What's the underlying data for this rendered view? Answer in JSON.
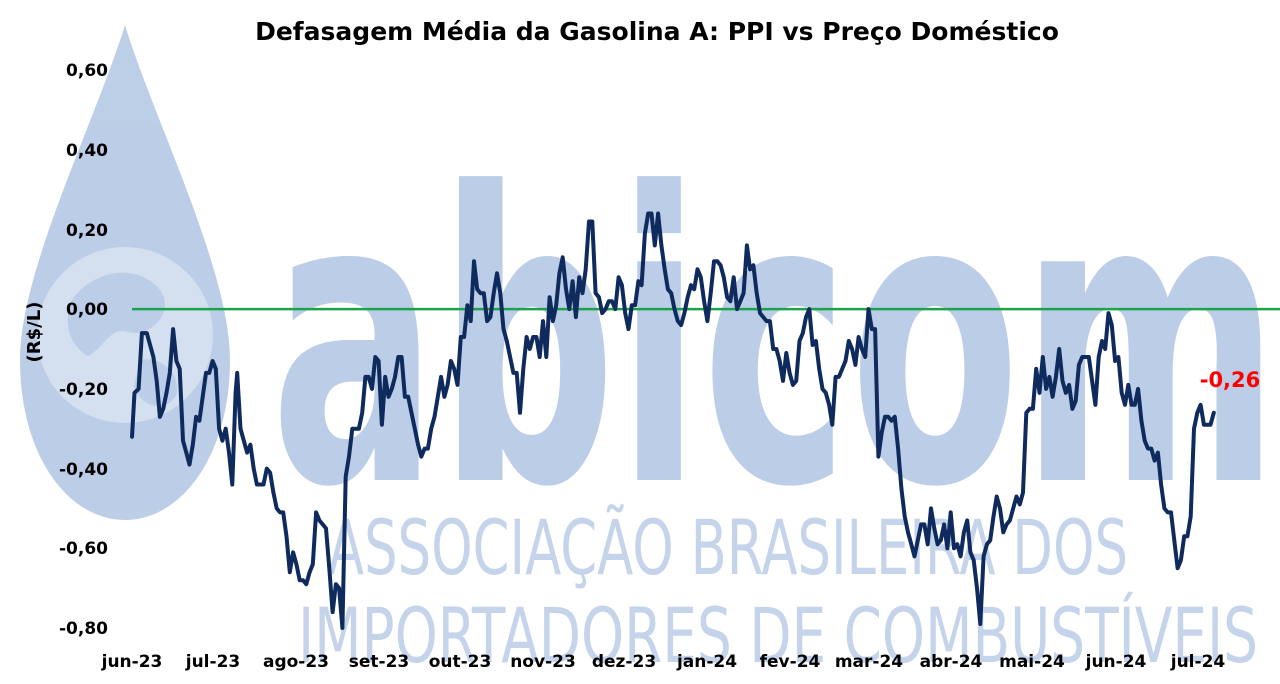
{
  "chart_data": {
    "type": "line",
    "title": "Defasagem Média da Gasolina A: PPI vs Preço Doméstico",
    "ylabel": "(R$/L)",
    "xlabel": "",
    "ylim": [
      -0.8,
      0.6
    ],
    "y_ticks": [
      "0,60",
      "0,40",
      "0,20",
      "0,00",
      "-0,20",
      "-0,40",
      "-0,60",
      "-0,80"
    ],
    "y_tick_values": [
      0.6,
      0.4,
      0.2,
      0.0,
      -0.2,
      -0.4,
      -0.6,
      -0.8
    ],
    "categories": [
      "jun-23",
      "jul-23",
      "ago-23",
      "set-23",
      "out-23",
      "nov-23",
      "dez-23",
      "jan-24",
      "fev-24",
      "mar-24",
      "abr-24",
      "mai-24",
      "jun-24",
      "jul-24"
    ],
    "reference_line": {
      "y": 0.0,
      "color": "#1aa34a"
    },
    "series_color": "#0f2a5c",
    "last_value_label": "-0,26",
    "last_value_color": "#ff0000",
    "grid": false,
    "legend": "none",
    "x_position_unit": "months since start of jun-23",
    "points": [
      [
        0.0,
        -0.32
      ],
      [
        0.03,
        -0.21
      ],
      [
        0.08,
        -0.2
      ],
      [
        0.12,
        -0.06
      ],
      [
        0.18,
        -0.06
      ],
      [
        0.22,
        -0.09
      ],
      [
        0.26,
        -0.12
      ],
      [
        0.3,
        -0.18
      ],
      [
        0.34,
        -0.27
      ],
      [
        0.38,
        -0.25
      ],
      [
        0.42,
        -0.21
      ],
      [
        0.46,
        -0.16
      ],
      [
        0.5,
        -0.05
      ],
      [
        0.54,
        -0.13
      ],
      [
        0.58,
        -0.15
      ],
      [
        0.62,
        -0.33
      ],
      [
        0.66,
        -0.36
      ],
      [
        0.7,
        -0.39
      ],
      [
        0.74,
        -0.34
      ],
      [
        0.78,
        -0.27
      ],
      [
        0.82,
        -0.28
      ],
      [
        0.86,
        -0.22
      ],
      [
        0.9,
        -0.16
      ],
      [
        0.94,
        -0.16
      ],
      [
        0.98,
        -0.13
      ],
      [
        1.02,
        -0.15
      ],
      [
        1.06,
        -0.3
      ],
      [
        1.1,
        -0.33
      ],
      [
        1.14,
        -0.3
      ],
      [
        1.18,
        -0.36
      ],
      [
        1.22,
        -0.44
      ],
      [
        1.26,
        -0.21
      ],
      [
        1.28,
        -0.16
      ],
      [
        1.32,
        -0.3
      ],
      [
        1.36,
        -0.33
      ],
      [
        1.4,
        -0.36
      ],
      [
        1.44,
        -0.34
      ],
      [
        1.48,
        -0.4
      ],
      [
        1.52,
        -0.44
      ],
      [
        1.56,
        -0.44
      ],
      [
        1.6,
        -0.44
      ],
      [
        1.64,
        -0.4
      ],
      [
        1.68,
        -0.41
      ],
      [
        1.72,
        -0.46
      ],
      [
        1.76,
        -0.5
      ],
      [
        1.8,
        -0.51
      ],
      [
        1.84,
        -0.51
      ],
      [
        1.88,
        -0.57
      ],
      [
        1.92,
        -0.66
      ],
      [
        1.96,
        -0.61
      ],
      [
        2.0,
        -0.64
      ],
      [
        2.04,
        -0.68
      ],
      [
        2.08,
        -0.68
      ],
      [
        2.12,
        -0.69
      ],
      [
        2.16,
        -0.66
      ],
      [
        2.2,
        -0.64
      ],
      [
        2.24,
        -0.51
      ],
      [
        2.28,
        -0.53
      ],
      [
        2.32,
        -0.54
      ],
      [
        2.36,
        -0.55
      ],
      [
        2.4,
        -0.65
      ],
      [
        2.44,
        -0.76
      ],
      [
        2.48,
        -0.69
      ],
      [
        2.52,
        -0.7
      ],
      [
        2.56,
        -0.8
      ],
      [
        2.6,
        -0.42
      ],
      [
        2.64,
        -0.37
      ],
      [
        2.68,
        -0.3
      ],
      [
        2.72,
        -0.3
      ],
      [
        2.76,
        -0.3
      ],
      [
        2.8,
        -0.26
      ],
      [
        2.84,
        -0.17
      ],
      [
        2.88,
        -0.17
      ],
      [
        2.92,
        -0.2
      ],
      [
        2.96,
        -0.12
      ],
      [
        3.0,
        -0.13
      ],
      [
        3.04,
        -0.29
      ],
      [
        3.08,
        -0.17
      ],
      [
        3.12,
        -0.22
      ],
      [
        3.16,
        -0.2
      ],
      [
        3.2,
        -0.17
      ],
      [
        3.24,
        -0.12
      ],
      [
        3.28,
        -0.12
      ],
      [
        3.32,
        -0.22
      ],
      [
        3.36,
        -0.22
      ],
      [
        3.4,
        -0.26
      ],
      [
        3.44,
        -0.3
      ],
      [
        3.48,
        -0.34
      ],
      [
        3.52,
        -0.37
      ],
      [
        3.56,
        -0.35
      ],
      [
        3.6,
        -0.35
      ],
      [
        3.64,
        -0.3
      ],
      [
        3.68,
        -0.27
      ],
      [
        3.72,
        -0.22
      ],
      [
        3.76,
        -0.17
      ],
      [
        3.8,
        -0.22
      ],
      [
        3.84,
        -0.19
      ],
      [
        3.88,
        -0.13
      ],
      [
        3.92,
        -0.15
      ],
      [
        3.96,
        -0.19
      ],
      [
        4.0,
        -0.07
      ],
      [
        4.04,
        -0.07
      ],
      [
        4.08,
        0.01
      ],
      [
        4.12,
        -0.03
      ],
      [
        4.16,
        0.12
      ],
      [
        4.2,
        0.05
      ],
      [
        4.24,
        0.04
      ],
      [
        4.28,
        0.04
      ],
      [
        4.32,
        -0.03
      ],
      [
        4.36,
        -0.02
      ],
      [
        4.4,
        0.04
      ],
      [
        4.44,
        0.09
      ],
      [
        4.48,
        0.04
      ],
      [
        4.52,
        -0.05
      ],
      [
        4.56,
        -0.08
      ],
      [
        4.6,
        -0.12
      ],
      [
        4.64,
        -0.16
      ],
      [
        4.68,
        -0.16
      ],
      [
        4.72,
        -0.26
      ],
      [
        4.76,
        -0.15
      ],
      [
        4.8,
        -0.07
      ],
      [
        4.84,
        -0.1
      ],
      [
        4.88,
        -0.07
      ],
      [
        4.92,
        -0.07
      ],
      [
        4.96,
        -0.12
      ],
      [
        5.0,
        -0.03
      ],
      [
        5.04,
        -0.12
      ],
      [
        5.08,
        0.03
      ],
      [
        5.12,
        -0.03
      ],
      [
        5.16,
        0.01
      ],
      [
        5.2,
        0.09
      ],
      [
        5.24,
        0.13
      ],
      [
        5.28,
        0.05
      ],
      [
        5.32,
        0.0
      ],
      [
        5.36,
        0.07
      ],
      [
        5.4,
        -0.02
      ],
      [
        5.44,
        0.08
      ],
      [
        5.48,
        0.04
      ],
      [
        5.52,
        0.1
      ],
      [
        5.56,
        0.22
      ],
      [
        5.6,
        0.22
      ],
      [
        5.64,
        0.04
      ],
      [
        5.68,
        0.03
      ],
      [
        5.72,
        -0.01
      ],
      [
        5.76,
        0.0
      ],
      [
        5.8,
        0.02
      ],
      [
        5.84,
        0.02
      ],
      [
        5.88,
        0.0
      ],
      [
        5.92,
        0.08
      ],
      [
        5.96,
        0.06
      ],
      [
        6.0,
        -0.01
      ],
      [
        6.04,
        -0.05
      ],
      [
        6.08,
        0.01
      ],
      [
        6.12,
        0.01
      ],
      [
        6.16,
        0.07
      ],
      [
        6.2,
        0.06
      ],
      [
        6.24,
        0.19
      ],
      [
        6.28,
        0.24
      ],
      [
        6.32,
        0.24
      ],
      [
        6.36,
        0.16
      ],
      [
        6.4,
        0.24
      ],
      [
        6.44,
        0.16
      ],
      [
        6.48,
        0.1
      ],
      [
        6.52,
        0.05
      ],
      [
        6.56,
        0.04
      ],
      [
        6.6,
        0.0
      ],
      [
        6.64,
        -0.03
      ],
      [
        6.68,
        -0.04
      ],
      [
        6.72,
        -0.01
      ],
      [
        6.76,
        0.03
      ],
      [
        6.8,
        0.06
      ],
      [
        6.84,
        0.05
      ],
      [
        6.88,
        0.1
      ],
      [
        6.92,
        0.08
      ],
      [
        6.96,
        0.02
      ],
      [
        7.0,
        -0.03
      ],
      [
        7.04,
        0.04
      ],
      [
        7.08,
        0.12
      ],
      [
        7.12,
        0.12
      ],
      [
        7.16,
        0.11
      ],
      [
        7.2,
        0.08
      ],
      [
        7.24,
        0.03
      ],
      [
        7.28,
        0.02
      ],
      [
        7.32,
        0.08
      ],
      [
        7.36,
        0.0
      ],
      [
        7.4,
        0.02
      ],
      [
        7.44,
        0.04
      ],
      [
        7.48,
        0.16
      ],
      [
        7.52,
        0.1
      ],
      [
        7.56,
        0.11
      ],
      [
        7.6,
        0.04
      ],
      [
        7.64,
        -0.01
      ],
      [
        7.68,
        -0.02
      ],
      [
        7.72,
        -0.03
      ],
      [
        7.76,
        -0.03
      ],
      [
        7.8,
        -0.1
      ],
      [
        7.84,
        -0.1
      ],
      [
        7.88,
        -0.13
      ],
      [
        7.92,
        -0.18
      ],
      [
        7.96,
        -0.11
      ],
      [
        8.0,
        -0.16
      ],
      [
        8.04,
        -0.19
      ],
      [
        8.08,
        -0.18
      ],
      [
        8.12,
        -0.08
      ],
      [
        8.16,
        -0.06
      ],
      [
        8.2,
        -0.02
      ],
      [
        8.24,
        0.0
      ],
      [
        8.28,
        -0.09
      ],
      [
        8.32,
        -0.08
      ],
      [
        8.36,
        -0.15
      ],
      [
        8.4,
        -0.2
      ],
      [
        8.44,
        -0.21
      ],
      [
        8.48,
        -0.24
      ],
      [
        8.52,
        -0.29
      ],
      [
        8.56,
        -0.17
      ],
      [
        8.6,
        -0.17
      ],
      [
        8.64,
        -0.15
      ],
      [
        8.68,
        -0.13
      ],
      [
        8.72,
        -0.08
      ],
      [
        8.76,
        -0.1
      ],
      [
        8.8,
        -0.14
      ],
      [
        8.84,
        -0.07
      ],
      [
        8.88,
        -0.1
      ],
      [
        8.92,
        -0.12
      ],
      [
        8.96,
        0.0
      ],
      [
        9.0,
        -0.05
      ],
      [
        9.04,
        -0.05
      ],
      [
        9.08,
        -0.37
      ],
      [
        9.12,
        -0.31
      ],
      [
        9.16,
        -0.27
      ],
      [
        9.2,
        -0.27
      ],
      [
        9.24,
        -0.28
      ],
      [
        9.28,
        -0.27
      ],
      [
        9.32,
        -0.35
      ],
      [
        9.36,
        -0.45
      ],
      [
        9.4,
        -0.52
      ],
      [
        9.44,
        -0.56
      ],
      [
        9.48,
        -0.59
      ],
      [
        9.52,
        -0.62
      ],
      [
        9.56,
        -0.58
      ],
      [
        9.6,
        -0.54
      ],
      [
        9.64,
        -0.54
      ],
      [
        9.68,
        -0.59
      ],
      [
        9.72,
        -0.5
      ],
      [
        9.76,
        -0.55
      ],
      [
        9.8,
        -0.59
      ],
      [
        9.84,
        -0.58
      ],
      [
        9.88,
        -0.54
      ],
      [
        9.92,
        -0.6
      ],
      [
        9.96,
        -0.51
      ],
      [
        10.0,
        -0.6
      ],
      [
        10.04,
        -0.59
      ],
      [
        10.08,
        -0.62
      ],
      [
        10.12,
        -0.56
      ],
      [
        10.16,
        -0.53
      ],
      [
        10.2,
        -0.61
      ],
      [
        10.24,
        -0.63
      ],
      [
        10.28,
        -0.7
      ],
      [
        10.32,
        -0.79
      ],
      [
        10.36,
        -0.62
      ],
      [
        10.4,
        -0.59
      ],
      [
        10.44,
        -0.58
      ],
      [
        10.48,
        -0.52
      ],
      [
        10.52,
        -0.47
      ],
      [
        10.56,
        -0.5
      ],
      [
        10.6,
        -0.56
      ],
      [
        10.64,
        -0.54
      ],
      [
        10.68,
        -0.53
      ],
      [
        10.72,
        -0.5
      ],
      [
        10.76,
        -0.47
      ],
      [
        10.8,
        -0.49
      ],
      [
        10.84,
        -0.46
      ],
      [
        10.88,
        -0.26
      ],
      [
        10.92,
        -0.25
      ],
      [
        10.96,
        -0.25
      ],
      [
        11.0,
        -0.15
      ],
      [
        11.04,
        -0.21
      ],
      [
        11.08,
        -0.12
      ],
      [
        11.12,
        -0.2
      ],
      [
        11.16,
        -0.17
      ],
      [
        11.2,
        -0.22
      ],
      [
        11.24,
        -0.17
      ],
      [
        11.28,
        -0.1
      ],
      [
        11.32,
        -0.18
      ],
      [
        11.36,
        -0.21
      ],
      [
        11.4,
        -0.19
      ],
      [
        11.44,
        -0.25
      ],
      [
        11.48,
        -0.23
      ],
      [
        11.52,
        -0.14
      ],
      [
        11.56,
        -0.12
      ],
      [
        11.6,
        -0.12
      ],
      [
        11.64,
        -0.12
      ],
      [
        11.68,
        -0.18
      ],
      [
        11.72,
        -0.24
      ],
      [
        11.76,
        -0.12
      ],
      [
        11.8,
        -0.08
      ],
      [
        11.84,
        -0.1
      ],
      [
        11.88,
        -0.01
      ],
      [
        11.92,
        -0.04
      ],
      [
        11.96,
        -0.13
      ],
      [
        12.0,
        -0.12
      ],
      [
        12.04,
        -0.21
      ],
      [
        12.08,
        -0.24
      ],
      [
        12.12,
        -0.19
      ],
      [
        12.16,
        -0.24
      ],
      [
        12.2,
        -0.24
      ],
      [
        12.24,
        -0.2
      ],
      [
        12.28,
        -0.28
      ],
      [
        12.32,
        -0.33
      ],
      [
        12.36,
        -0.35
      ],
      [
        12.4,
        -0.35
      ],
      [
        12.44,
        -0.38
      ],
      [
        12.48,
        -0.36
      ],
      [
        12.52,
        -0.44
      ],
      [
        12.56,
        -0.5
      ],
      [
        12.6,
        -0.51
      ],
      [
        12.64,
        -0.51
      ],
      [
        12.68,
        -0.58
      ],
      [
        12.72,
        -0.65
      ],
      [
        12.76,
        -0.63
      ],
      [
        12.8,
        -0.57
      ],
      [
        12.84,
        -0.57
      ],
      [
        12.88,
        -0.52
      ],
      [
        12.92,
        -0.3
      ],
      [
        12.96,
        -0.26
      ],
      [
        13.0,
        -0.24
      ],
      [
        13.04,
        -0.29
      ],
      [
        13.08,
        -0.29
      ],
      [
        13.12,
        -0.29
      ],
      [
        13.16,
        -0.26
      ]
    ]
  },
  "watermark": {
    "brand": "abicom",
    "line1": "ASSOCIAÇÃO BRASILEIRA DOS",
    "line2": "IMPORTADORES DE COMBUSTÍVEIS"
  }
}
